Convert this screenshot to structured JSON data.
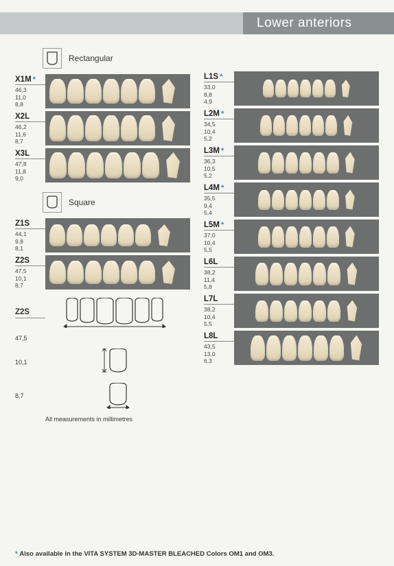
{
  "header": {
    "title": "Lower anteriors"
  },
  "shapes": {
    "rect": {
      "label": "Rectangular"
    },
    "square": {
      "label": "Square"
    }
  },
  "left": {
    "rect_rows": [
      {
        "code": "X1M",
        "star": true,
        "m1": "46,3",
        "m2": "11,0",
        "m3": "8,8",
        "tw": 24,
        "th": 36
      },
      {
        "code": "X2L",
        "star": false,
        "m1": "46,2",
        "m2": "11,6",
        "m3": "8,7",
        "tw": 24,
        "th": 38
      },
      {
        "code": "X3L",
        "star": false,
        "m1": "47,8",
        "m2": "11,8",
        "m3": "9,0",
        "tw": 25,
        "th": 38
      }
    ],
    "square_rows": [
      {
        "code": "Z1S",
        "star": false,
        "m1": "44,1",
        "m2": "9,8",
        "m3": "8,1",
        "tw": 23,
        "th": 32
      },
      {
        "code": "Z2S",
        "star": false,
        "m1": "47,5",
        "m2": "10,1",
        "m3": "8,7",
        "tw": 24,
        "th": 34
      }
    ],
    "diagram": {
      "code": "Z2S",
      "w": "47,5",
      "h": "10,1",
      "d": "8,7"
    },
    "note": "All measurements in millimetres"
  },
  "right": {
    "rows": [
      {
        "code": "L1S",
        "star": true,
        "m1": "33,0",
        "m2": "8,8",
        "m3": "4,9",
        "tw": 16,
        "th": 26
      },
      {
        "code": "L2M",
        "star": true,
        "m1": "34,5",
        "m2": "10,4",
        "m3": "5,2",
        "tw": 17,
        "th": 30
      },
      {
        "code": "L3M",
        "star": true,
        "m1": "36,3",
        "m2": "10,5",
        "m3": "5,2",
        "tw": 18,
        "th": 31
      },
      {
        "code": "L4M",
        "star": true,
        "m1": "35,5",
        "m2": "9,4",
        "m3": "5,4",
        "tw": 18,
        "th": 29
      },
      {
        "code": "L5M",
        "star": true,
        "m1": "37,0",
        "m2": "10,4",
        "m3": "5,5",
        "tw": 18,
        "th": 31
      },
      {
        "code": "L6L",
        "star": false,
        "m1": "38,2",
        "m2": "11,4",
        "m3": "5,8",
        "tw": 19,
        "th": 33
      },
      {
        "code": "L7L",
        "star": false,
        "m1": "38,2",
        "m2": "10,4",
        "m3": "5,5",
        "tw": 19,
        "th": 31
      },
      {
        "code": "L8L",
        "star": false,
        "m1": "43,5",
        "m2": "13,0",
        "m3": "6,3",
        "tw": 21,
        "th": 37
      }
    ]
  },
  "footnote": {
    "star": "*",
    "text": "Also available in the VITA SYSTEM 3D-MASTER BLEACHED Colors OM1 and OM3."
  },
  "colors": {
    "panel": "#6d6f6f",
    "star": "#4a7fc4"
  }
}
